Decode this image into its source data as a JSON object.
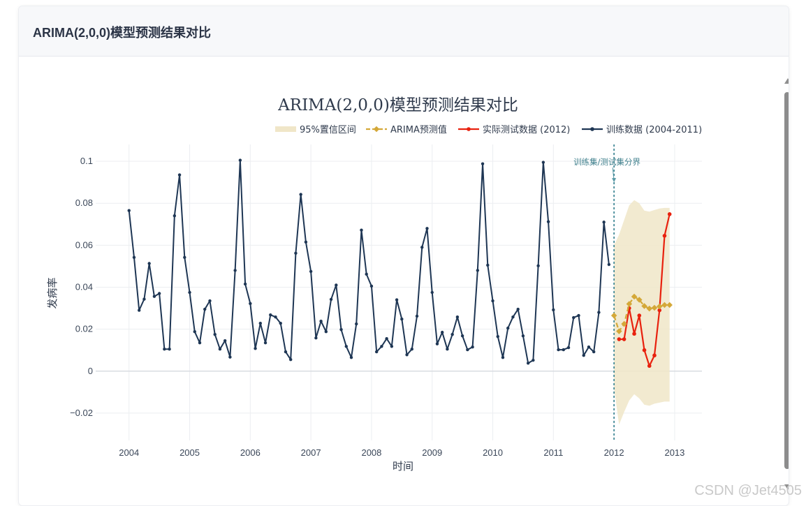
{
  "card": {
    "title": "ARIMA(2,0,0)模型预测结果对比"
  },
  "watermark": "CSDN @Jet4505",
  "chart_data": {
    "type": "line",
    "title": "ARIMA(2,0,0)模型预测结果对比",
    "xlabel": "时间",
    "ylabel": "发病率",
    "xlim": [
      2003.45,
      2013.45
    ],
    "ylim": [
      -0.033,
      0.108
    ],
    "x_ticks": [
      2004,
      2005,
      2006,
      2007,
      2008,
      2009,
      2010,
      2011,
      2012,
      2013
    ],
    "x_tick_labels": [
      "2004",
      "2005",
      "2006",
      "2007",
      "2008",
      "2009",
      "2010",
      "2011",
      "2012",
      "2013"
    ],
    "y_ticks": [
      -0.02,
      0,
      0.02,
      0.04,
      0.06,
      0.08,
      0.1
    ],
    "y_tick_labels": [
      "−0.02",
      "0",
      "0.02",
      "0.04",
      "0.06",
      "0.08",
      "0.1"
    ],
    "grid": true,
    "legend_position": "top-right",
    "legend": [
      {
        "label": "95%置信区间",
        "kind": "band",
        "color": "#f0e6c8"
      },
      {
        "label": "ARIMA预测值",
        "kind": "dash",
        "color": "#d4a838"
      },
      {
        "label": "实际测试数据 (2012)",
        "kind": "line",
        "color": "#e8210e"
      },
      {
        "label": "训练数据 (2004-2011)",
        "kind": "line",
        "color": "#1e3654"
      }
    ],
    "annotation": {
      "text": "训练集/测试集分界",
      "x": 2012,
      "y": 0.09
    },
    "divider_x": 2012,
    "series": [
      {
        "name": "训练数据 (2004-2011)",
        "color": "#1e3654",
        "x_start": 2004,
        "x_step": 0.08333,
        "values": [
          0.0765,
          0.0542,
          0.029,
          0.0343,
          0.0513,
          0.0356,
          0.037,
          0.0105,
          0.0105,
          0.074,
          0.0935,
          0.0542,
          0.0375,
          0.0188,
          0.0135,
          0.0295,
          0.0335,
          0.0175,
          0.0105,
          0.0145,
          0.0067,
          0.048,
          0.1005,
          0.0415,
          0.0322,
          0.0108,
          0.0228,
          0.0135,
          0.0268,
          0.0258,
          0.0228,
          0.0092,
          0.0055,
          0.0562,
          0.0842,
          0.0615,
          0.0475,
          0.0158,
          0.0238,
          0.0188,
          0.0342,
          0.041,
          0.0198,
          0.0118,
          0.0065,
          0.0225,
          0.0672,
          0.0462,
          0.0405,
          0.0092,
          0.0118,
          0.0155,
          0.0118,
          0.034,
          0.0248,
          0.0078,
          0.0105,
          0.0262,
          0.059,
          0.068,
          0.0375,
          0.013,
          0.0185,
          0.0105,
          0.0175,
          0.0258,
          0.0168,
          0.0102,
          0.0115,
          0.048,
          0.0988,
          0.0505,
          0.0335,
          0.0165,
          0.0065,
          0.0205,
          0.0258,
          0.0295,
          0.0168,
          0.0038,
          0.0052,
          0.0502,
          0.0995,
          0.0712,
          0.0292,
          0.0102,
          0.0102,
          0.0112,
          0.0255,
          0.0265,
          0.0075,
          0.0115,
          0.0092,
          0.028,
          0.071,
          0.0508
        ]
      },
      {
        "name": "实际测试数据 (2012)",
        "color": "#e8210e",
        "x_start": 2012.0833,
        "x_step": 0.08333,
        "values": [
          0.0152,
          0.0152,
          0.03,
          0.0178,
          0.0265,
          0.01,
          0.0025,
          0.0075,
          0.029,
          0.0645,
          0.0748
        ]
      },
      {
        "name": "ARIMA预测值",
        "color": "#d4a838",
        "x_start": 2012.0,
        "x_step": 0.08333,
        "values": [
          0.0265,
          0.019,
          0.0225,
          0.032,
          0.0355,
          0.034,
          0.031,
          0.0298,
          0.0302,
          0.0308,
          0.0315,
          0.0315
        ]
      }
    ],
    "confidence_band": {
      "name": "95%置信区间",
      "x_start": 2012.0,
      "x_step": 0.08333,
      "upper": [
        0.06,
        0.065,
        0.072,
        0.079,
        0.0815,
        0.08,
        0.0765,
        0.076,
        0.0768,
        0.0775,
        0.0778,
        0.0778
      ],
      "lower": [
        -0.008,
        -0.0255,
        -0.0195,
        -0.014,
        -0.011,
        -0.013,
        -0.016,
        -0.0165,
        -0.0155,
        -0.015,
        -0.0145,
        -0.0145
      ]
    }
  }
}
